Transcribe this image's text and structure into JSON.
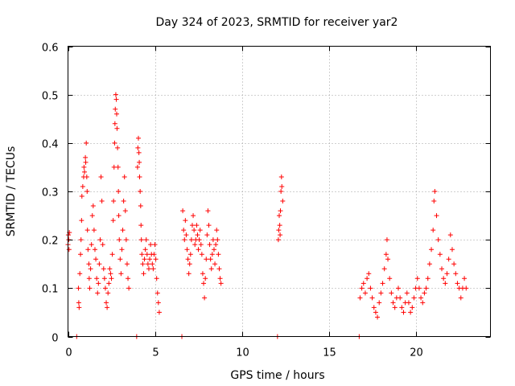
{
  "chart_data": {
    "type": "scatter",
    "title": "Day 324 of 2023, SRMTID for receiver yar2",
    "xlabel": "GPS time / hours",
    "ylabel": "SRMTID / TECUs",
    "xlim": [
      0,
      24.3
    ],
    "ylim": [
      0,
      0.6
    ],
    "xticks": [
      0,
      5,
      10,
      15,
      20
    ],
    "xtick_labels": [
      "0",
      "5",
      "10",
      "15",
      "20"
    ],
    "yticks": [
      0,
      0.1,
      0.2,
      0.3,
      0.4,
      0.5,
      0.6
    ],
    "ytick_labels": [
      "0",
      "0.1",
      "0.2",
      "0.3",
      "0.4",
      "0.5",
      "0.6"
    ],
    "grid": true,
    "marker": "+",
    "series": [
      {
        "name": "SRMTID",
        "color": "#ff0000",
        "points": [
          [
            0.0,
            0.19
          ],
          [
            0.02,
            0.21
          ],
          [
            0.04,
            0.2
          ],
          [
            0.06,
            0.18
          ],
          [
            0.08,
            0.215
          ],
          [
            0.5,
            0.0
          ],
          [
            0.6,
            0.1
          ],
          [
            0.62,
            0.07
          ],
          [
            0.64,
            0.06
          ],
          [
            0.68,
            0.13
          ],
          [
            0.72,
            0.17
          ],
          [
            0.75,
            0.2
          ],
          [
            0.78,
            0.24
          ],
          [
            0.8,
            0.29
          ],
          [
            0.85,
            0.31
          ],
          [
            0.9,
            0.33
          ],
          [
            0.92,
            0.35
          ],
          [
            0.95,
            0.34
          ],
          [
            1.0,
            0.37
          ],
          [
            1.02,
            0.36
          ],
          [
            1.05,
            0.4
          ],
          [
            1.08,
            0.33
          ],
          [
            1.1,
            0.3
          ],
          [
            1.12,
            0.22
          ],
          [
            1.15,
            0.18
          ],
          [
            1.2,
            0.15
          ],
          [
            1.22,
            0.12
          ],
          [
            1.25,
            0.1
          ],
          [
            1.3,
            0.14
          ],
          [
            1.35,
            0.19
          ],
          [
            1.4,
            0.25
          ],
          [
            1.45,
            0.27
          ],
          [
            1.5,
            0.22
          ],
          [
            1.55,
            0.18
          ],
          [
            1.6,
            0.16
          ],
          [
            1.65,
            0.12
          ],
          [
            1.7,
            0.09
          ],
          [
            1.75,
            0.11
          ],
          [
            1.8,
            0.15
          ],
          [
            1.85,
            0.2
          ],
          [
            1.9,
            0.33
          ],
          [
            1.95,
            0.28
          ],
          [
            2.0,
            0.19
          ],
          [
            2.05,
            0.14
          ],
          [
            2.1,
            0.12
          ],
          [
            2.15,
            0.1
          ],
          [
            2.2,
            0.07
          ],
          [
            2.25,
            0.06
          ],
          [
            2.3,
            0.09
          ],
          [
            2.35,
            0.11
          ],
          [
            2.4,
            0.14
          ],
          [
            2.45,
            0.13
          ],
          [
            2.5,
            0.12
          ],
          [
            2.55,
            0.17
          ],
          [
            2.6,
            0.24
          ],
          [
            2.62,
            0.28
          ],
          [
            2.65,
            0.35
          ],
          [
            2.68,
            0.4
          ],
          [
            2.7,
            0.44
          ],
          [
            2.72,
            0.47
          ],
          [
            2.75,
            0.5
          ],
          [
            2.78,
            0.49
          ],
          [
            2.8,
            0.46
          ],
          [
            2.82,
            0.43
          ],
          [
            2.85,
            0.39
          ],
          [
            2.88,
            0.35
          ],
          [
            2.9,
            0.3
          ],
          [
            2.92,
            0.25
          ],
          [
            2.95,
            0.2
          ],
          [
            3.0,
            0.16
          ],
          [
            3.05,
            0.13
          ],
          [
            3.1,
            0.18
          ],
          [
            3.15,
            0.22
          ],
          [
            3.2,
            0.28
          ],
          [
            3.25,
            0.33
          ],
          [
            3.3,
            0.26
          ],
          [
            3.35,
            0.2
          ],
          [
            3.4,
            0.15
          ],
          [
            3.45,
            0.12
          ],
          [
            3.5,
            0.1
          ],
          [
            3.95,
            0.0
          ],
          [
            4.0,
            0.35
          ],
          [
            4.02,
            0.39
          ],
          [
            4.05,
            0.41
          ],
          [
            4.08,
            0.38
          ],
          [
            4.1,
            0.36
          ],
          [
            4.12,
            0.33
          ],
          [
            4.15,
            0.3
          ],
          [
            4.18,
            0.27
          ],
          [
            4.2,
            0.23
          ],
          [
            4.22,
            0.2
          ],
          [
            4.25,
            0.17
          ],
          [
            4.3,
            0.15
          ],
          [
            4.35,
            0.13
          ],
          [
            4.4,
            0.16
          ],
          [
            4.45,
            0.18
          ],
          [
            4.5,
            0.2
          ],
          [
            4.55,
            0.17
          ],
          [
            4.6,
            0.15
          ],
          [
            4.65,
            0.14
          ],
          [
            4.7,
            0.16
          ],
          [
            4.75,
            0.19
          ],
          [
            4.8,
            0.17
          ],
          [
            4.85,
            0.15
          ],
          [
            4.9,
            0.14
          ],
          [
            4.95,
            0.17
          ],
          [
            5.0,
            0.19
          ],
          [
            5.05,
            0.16
          ],
          [
            5.1,
            0.12
          ],
          [
            5.15,
            0.09
          ],
          [
            5.2,
            0.07
          ],
          [
            5.25,
            0.05
          ],
          [
            6.55,
            0.0
          ],
          [
            6.6,
            0.26
          ],
          [
            6.65,
            0.22
          ],
          [
            6.7,
            0.2
          ],
          [
            6.75,
            0.24
          ],
          [
            6.8,
            0.21
          ],
          [
            6.85,
            0.18
          ],
          [
            6.9,
            0.16
          ],
          [
            6.95,
            0.13
          ],
          [
            7.0,
            0.15
          ],
          [
            7.05,
            0.17
          ],
          [
            7.1,
            0.2
          ],
          [
            7.15,
            0.23
          ],
          [
            7.2,
            0.25
          ],
          [
            7.25,
            0.22
          ],
          [
            7.3,
            0.19
          ],
          [
            7.35,
            0.2
          ],
          [
            7.4,
            0.23
          ],
          [
            7.45,
            0.21
          ],
          [
            7.5,
            0.18
          ],
          [
            7.55,
            0.2
          ],
          [
            7.6,
            0.22
          ],
          [
            7.65,
            0.19
          ],
          [
            7.7,
            0.17
          ],
          [
            7.75,
            0.13
          ],
          [
            7.8,
            0.11
          ],
          [
            7.85,
            0.08
          ],
          [
            7.9,
            0.12
          ],
          [
            7.95,
            0.16
          ],
          [
            8.0,
            0.21
          ],
          [
            8.05,
            0.26
          ],
          [
            8.1,
            0.23
          ],
          [
            8.15,
            0.19
          ],
          [
            8.2,
            0.16
          ],
          [
            8.25,
            0.14
          ],
          [
            8.3,
            0.17
          ],
          [
            8.35,
            0.2
          ],
          [
            8.4,
            0.18
          ],
          [
            8.45,
            0.15
          ],
          [
            8.5,
            0.19
          ],
          [
            8.55,
            0.22
          ],
          [
            8.6,
            0.2
          ],
          [
            8.65,
            0.17
          ],
          [
            8.7,
            0.14
          ],
          [
            8.75,
            0.12
          ],
          [
            8.8,
            0.11
          ],
          [
            12.05,
            0.0
          ],
          [
            12.1,
            0.2
          ],
          [
            12.12,
            0.22
          ],
          [
            12.15,
            0.25
          ],
          [
            12.18,
            0.23
          ],
          [
            12.2,
            0.21
          ],
          [
            12.22,
            0.26
          ],
          [
            12.25,
            0.3
          ],
          [
            12.28,
            0.33
          ],
          [
            12.3,
            0.31
          ],
          [
            12.35,
            0.28
          ],
          [
            16.75,
            0.0
          ],
          [
            16.8,
            0.08
          ],
          [
            16.9,
            0.1
          ],
          [
            17.0,
            0.11
          ],
          [
            17.1,
            0.09
          ],
          [
            17.2,
            0.12
          ],
          [
            17.3,
            0.13
          ],
          [
            17.4,
            0.1
          ],
          [
            17.5,
            0.08
          ],
          [
            17.6,
            0.06
          ],
          [
            17.7,
            0.05
          ],
          [
            17.8,
            0.04
          ],
          [
            17.9,
            0.07
          ],
          [
            18.0,
            0.09
          ],
          [
            18.1,
            0.11
          ],
          [
            18.2,
            0.14
          ],
          [
            18.3,
            0.17
          ],
          [
            18.35,
            0.2
          ],
          [
            18.4,
            0.16
          ],
          [
            18.5,
            0.12
          ],
          [
            18.6,
            0.09
          ],
          [
            18.7,
            0.07
          ],
          [
            18.8,
            0.06
          ],
          [
            18.9,
            0.08
          ],
          [
            19.0,
            0.1
          ],
          [
            19.1,
            0.08
          ],
          [
            19.2,
            0.06
          ],
          [
            19.3,
            0.05
          ],
          [
            19.4,
            0.07
          ],
          [
            19.5,
            0.09
          ],
          [
            19.6,
            0.07
          ],
          [
            19.7,
            0.05
          ],
          [
            19.8,
            0.06
          ],
          [
            19.9,
            0.08
          ],
          [
            20.0,
            0.1
          ],
          [
            20.1,
            0.12
          ],
          [
            20.2,
            0.1
          ],
          [
            20.3,
            0.08
          ],
          [
            20.4,
            0.07
          ],
          [
            20.5,
            0.09
          ],
          [
            20.6,
            0.1
          ],
          [
            20.7,
            0.12
          ],
          [
            20.8,
            0.15
          ],
          [
            20.9,
            0.18
          ],
          [
            21.0,
            0.22
          ],
          [
            21.05,
            0.28
          ],
          [
            21.1,
            0.3
          ],
          [
            21.2,
            0.25
          ],
          [
            21.3,
            0.2
          ],
          [
            21.4,
            0.17
          ],
          [
            21.5,
            0.14
          ],
          [
            21.6,
            0.12
          ],
          [
            21.7,
            0.11
          ],
          [
            21.8,
            0.13
          ],
          [
            21.9,
            0.16
          ],
          [
            22.0,
            0.21
          ],
          [
            22.1,
            0.18
          ],
          [
            22.2,
            0.15
          ],
          [
            22.3,
            0.13
          ],
          [
            22.4,
            0.11
          ],
          [
            22.5,
            0.1
          ],
          [
            22.6,
            0.08
          ],
          [
            22.7,
            0.1
          ],
          [
            22.8,
            0.12
          ],
          [
            22.9,
            0.1
          ]
        ]
      }
    ]
  }
}
